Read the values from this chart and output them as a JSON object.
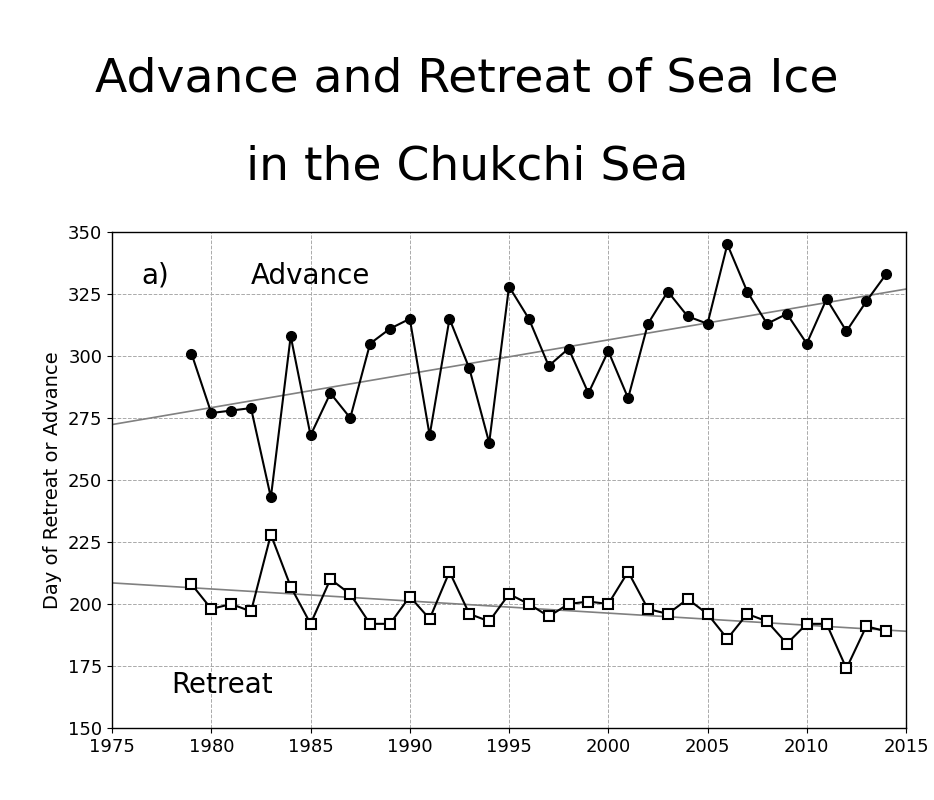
{
  "title_line1": "Advance and Retreat of Sea Ice",
  "title_line2": "in the Chukchi Sea",
  "ylabel": "Day of Retreat or Advance",
  "xlabel": "",
  "panel_label": "a)",
  "advance_label": "Advance",
  "retreat_label": "Retreat",
  "xlim": [
    1975,
    2015
  ],
  "ylim": [
    150,
    350
  ],
  "yticks": [
    150,
    175,
    200,
    225,
    250,
    275,
    300,
    325,
    350
  ],
  "xticks": [
    1975,
    1980,
    1985,
    1990,
    1995,
    2000,
    2005,
    2010,
    2015
  ],
  "advance_years": [
    1979,
    1980,
    1981,
    1982,
    1983,
    1984,
    1985,
    1986,
    1987,
    1988,
    1989,
    1990,
    1991,
    1992,
    1993,
    1994,
    1995,
    1996,
    1997,
    1998,
    1999,
    2000,
    2001,
    2002,
    2003,
    2004,
    2005,
    2006,
    2007,
    2008,
    2009,
    2010,
    2011,
    2012,
    2013,
    2014
  ],
  "advance_values": [
    301,
    277,
    278,
    279,
    243,
    308,
    268,
    285,
    275,
    305,
    311,
    315,
    268,
    315,
    295,
    265,
    328,
    315,
    296,
    303,
    285,
    302,
    283,
    313,
    326,
    316,
    313,
    345,
    326,
    313,
    317,
    305,
    323,
    310,
    322,
    333
  ],
  "retreat_years": [
    1979,
    1980,
    1981,
    1982,
    1983,
    1984,
    1985,
    1986,
    1987,
    1988,
    1989,
    1990,
    1991,
    1992,
    1993,
    1994,
    1995,
    1996,
    1997,
    1998,
    1999,
    2000,
    2001,
    2002,
    2003,
    2004,
    2005,
    2006,
    2007,
    2008,
    2009,
    2010,
    2011,
    2012,
    2013,
    2014
  ],
  "retreat_values": [
    208,
    198,
    200,
    197,
    228,
    207,
    192,
    210,
    204,
    192,
    192,
    203,
    194,
    213,
    196,
    193,
    204,
    200,
    195,
    200,
    201,
    200,
    213,
    198,
    196,
    202,
    196,
    186,
    196,
    193,
    184,
    192,
    192,
    174,
    191,
    189
  ],
  "title_fontsize": 34,
  "label_fontsize": 14,
  "tick_fontsize": 13,
  "panel_fontsize": 20,
  "annotation_fontsize": 20,
  "background_color": "#ffffff",
  "line_color": "#000000",
  "trend_color": "#808080"
}
